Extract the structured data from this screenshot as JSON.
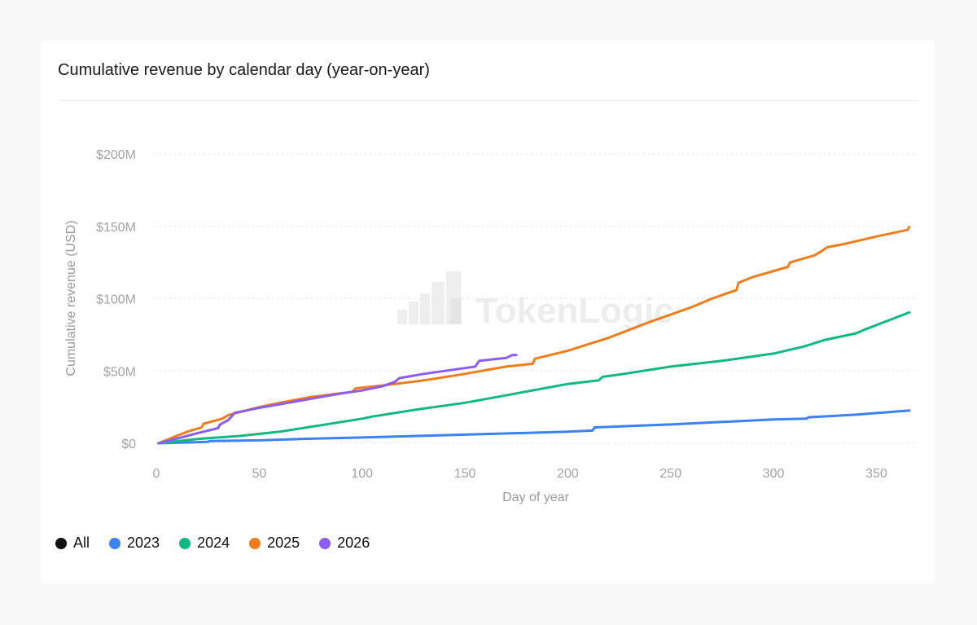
{
  "watermark": "TokenLogic",
  "legend": [
    {
      "label": "All",
      "color": "#111111"
    },
    {
      "label": "2023",
      "color": "#3b82f6"
    },
    {
      "label": "2024",
      "color": "#10b981"
    },
    {
      "label": "2025",
      "color": "#f07d1c"
    },
    {
      "label": "2026",
      "color": "#8b5cf6"
    }
  ],
  "chart_data": {
    "type": "line",
    "title": "Cumulative revenue by calendar day (year-on-year)",
    "xlabel": "Day of year",
    "ylabel": "Cumulative revenue (USD)",
    "xlim": [
      0,
      370
    ],
    "ylim": [
      0,
      200000000
    ],
    "x_ticks": [
      0,
      50,
      100,
      150,
      200,
      250,
      300,
      350
    ],
    "x_tick_labels": [
      "0",
      "50",
      "100",
      "150",
      "200",
      "250",
      "300",
      "350"
    ],
    "y_ticks": [
      0,
      50000000,
      100000000,
      150000000,
      200000000
    ],
    "y_tick_labels": [
      "$0",
      "$50M",
      "$100M",
      "$150M",
      "$200M"
    ],
    "grid": true,
    "legend_position": "bottom-left",
    "series": [
      {
        "name": "2023",
        "color": "#3b82f6",
        "x": [
          1,
          25,
          26,
          50,
          70,
          100,
          150,
          200,
          212,
          213,
          250,
          300,
          316,
          317,
          340,
          366
        ],
        "y": [
          0,
          1000000,
          1500000,
          2000000,
          3000000,
          4000000,
          6000000,
          8000000,
          8800000,
          11000000,
          13000000,
          16500000,
          17000000,
          18000000,
          19800000,
          22700000
        ]
      },
      {
        "name": "2024",
        "color": "#10b981",
        "x": [
          1,
          20,
          40,
          60,
          80,
          100,
          105,
          125,
          150,
          175,
          200,
          215,
          217,
          225,
          250,
          275,
          300,
          315,
          325,
          340,
          345,
          366
        ],
        "y": [
          0,
          3000000,
          5000000,
          8000000,
          12500000,
          17000000,
          18500000,
          23000000,
          28000000,
          34500000,
          41000000,
          43500000,
          46000000,
          47500000,
          53000000,
          57000000,
          62000000,
          67000000,
          71500000,
          76000000,
          79000000,
          90500000
        ]
      },
      {
        "name": "2025",
        "color": "#f07d1c",
        "x": [
          1,
          15,
          22,
          23,
          32,
          35,
          50,
          60,
          75,
          95,
          97,
          110,
          130,
          150,
          170,
          183,
          184,
          200,
          220,
          240,
          260,
          270,
          282,
          283,
          290,
          307,
          308,
          320,
          323,
          326,
          335,
          350,
          365,
          366
        ],
        "y": [
          0,
          8000000,
          11000000,
          13500000,
          17000000,
          19500000,
          25000000,
          28000000,
          32000000,
          35500000,
          38000000,
          40000000,
          43500000,
          48000000,
          53000000,
          55000000,
          58500000,
          64000000,
          73000000,
          84000000,
          94000000,
          100000000,
          106000000,
          111000000,
          115000000,
          122000000,
          125000000,
          130000000,
          132500000,
          135500000,
          138000000,
          143000000,
          147500000,
          149500000
        ]
      },
      {
        "name": "2026",
        "color": "#8b5cf6",
        "x": [
          1,
          12,
          20,
          30,
          31,
          35,
          38,
          50,
          60,
          70,
          80,
          90,
          100,
          110,
          116,
          118,
          130,
          150,
          155,
          157,
          170,
          173,
          175
        ],
        "y": [
          0,
          4000000,
          7000000,
          10500000,
          13000000,
          16000000,
          21000000,
          24500000,
          27000000,
          29500000,
          32000000,
          34500000,
          36500000,
          39500000,
          42500000,
          45000000,
          48000000,
          52000000,
          53000000,
          57000000,
          59000000,
          61000000,
          61000000
        ]
      }
    ]
  }
}
